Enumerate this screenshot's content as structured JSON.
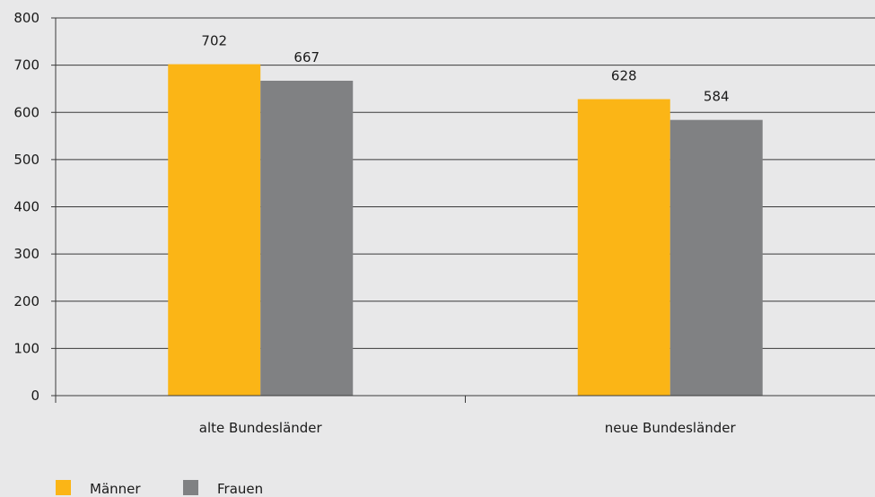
{
  "chart_data": {
    "type": "bar",
    "title": "",
    "xlabel": "",
    "ylabel": "",
    "categories": [
      "alte Bundesländer",
      "neue Bundesländer"
    ],
    "series": [
      {
        "name": "Männer",
        "values": [
          702,
          628
        ],
        "color": "#fbb516"
      },
      {
        "name": "Frauen",
        "values": [
          667,
          584
        ],
        "color": "#808183"
      }
    ],
    "data_labels": [
      [
        "702",
        "628"
      ],
      [
        "667",
        "584"
      ]
    ],
    "ylim": [
      0,
      800
    ],
    "yticks": [
      "0",
      "100",
      "200",
      "300",
      "400",
      "500",
      "600",
      "700",
      "800"
    ],
    "grid": true,
    "legend_position": "bottom-left"
  }
}
